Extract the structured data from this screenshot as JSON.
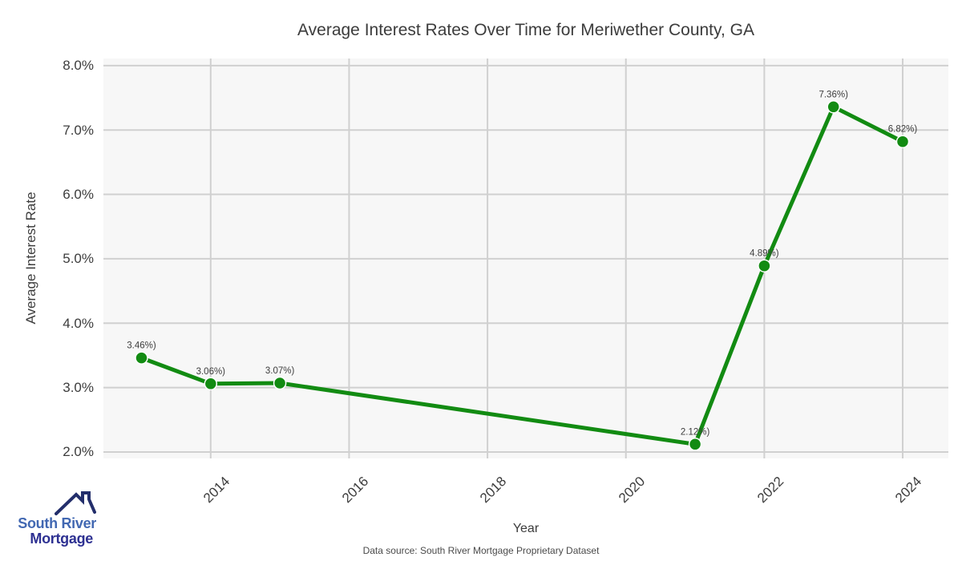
{
  "title": "Average Interest Rates Over Time for Meriwether County, GA",
  "chart_data": {
    "type": "line",
    "x": [
      2013,
      2014,
      2015,
      2021,
      2022,
      2023,
      2024
    ],
    "series": [
      {
        "name": "Average Interest Rate",
        "values": [
          3.46,
          3.06,
          3.07,
          2.12,
          4.89,
          7.36,
          6.82
        ],
        "point_labels": [
          "3.46%)",
          "3.06%)",
          "3.07%)",
          "2.12%)",
          "4.89%)",
          "7.36%)",
          "6.82%)"
        ]
      }
    ],
    "title": "Average Interest Rates Over Time for Meriwether County, GA",
    "xlabel": "Year",
    "ylabel": "Average Interest Rate",
    "xlim": [
      2012.45,
      2024.66
    ],
    "ylim": [
      1.9,
      8.11
    ],
    "xticks": [
      2014,
      2016,
      2018,
      2020,
      2022,
      2024
    ],
    "xtick_labels": [
      "2014",
      "2016",
      "2018",
      "2020",
      "2022",
      "2024"
    ],
    "yticks": [
      2,
      3,
      4,
      5,
      6,
      7,
      8
    ],
    "ytick_labels": [
      "2.0%",
      "3.0%",
      "4.0%",
      "5.0%",
      "6.0%",
      "7.0%",
      "8.0%"
    ],
    "grid": true,
    "legend": "none",
    "colors": {
      "line": "#128b12",
      "marker": "#128b12",
      "marker_edge": "#ffffff",
      "plot_background": "#f7f7f7",
      "gridline": "#d0d0d0",
      "label_text": "#3d3d3d"
    }
  },
  "footer": {
    "data_source": "Data source: South River Mortgage Proprietary Dataset"
  },
  "logo": {
    "line1": "South River",
    "line2": "Mortgage"
  }
}
